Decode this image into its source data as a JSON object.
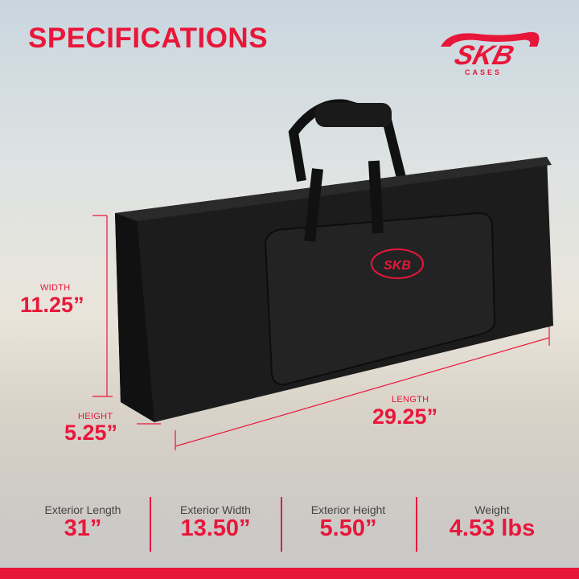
{
  "title": "SPECIFICATIONS",
  "brand": {
    "name": "SKB",
    "sub": "CASES",
    "color": "#e8173a"
  },
  "dimensions": {
    "width": {
      "label": "WIDTH",
      "value": "11.25”"
    },
    "height": {
      "label": "HEIGHT",
      "value": "5.25”"
    },
    "length": {
      "label": "LENGTH",
      "value": "29.25”"
    }
  },
  "specs": [
    {
      "label": "Exterior Length",
      "value": "31”"
    },
    {
      "label": "Exterior Width",
      "value": "13.50”"
    },
    {
      "label": "Exterior Height",
      "value": "5.50”"
    },
    {
      "label": "Weight",
      "value": "4.53 lbs"
    }
  ]
}
